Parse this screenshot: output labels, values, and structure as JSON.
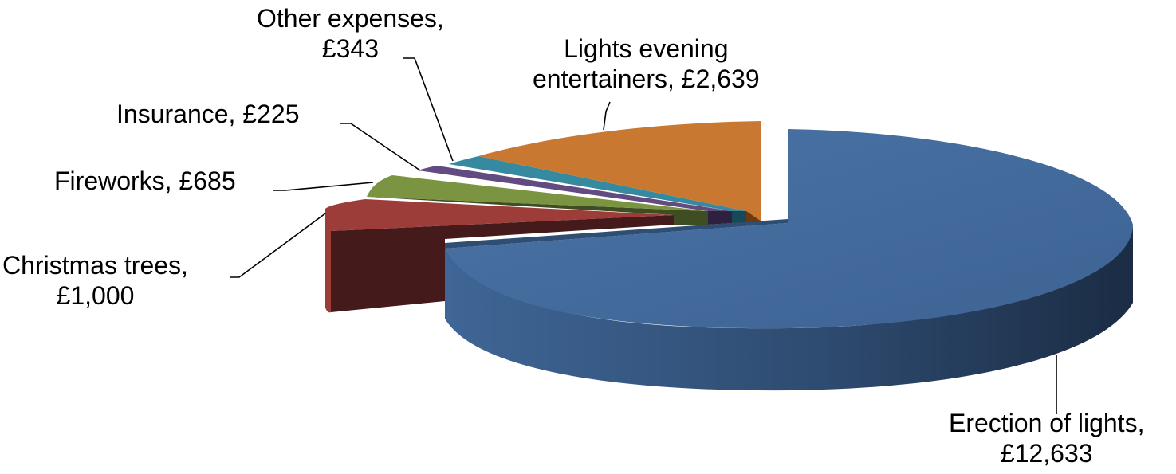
{
  "chart_data": {
    "type": "pie",
    "title": "",
    "slices": [
      {
        "name": "Erection of lights",
        "value_label": "£12,633",
        "value": 12633,
        "color": "#41699A"
      },
      {
        "name": "Christmas trees",
        "value_label": "£1,000",
        "value": 1000,
        "color": "#9C3D3A"
      },
      {
        "name": "Fireworks",
        "value_label": "£685",
        "value": 685,
        "color": "#7B9442"
      },
      {
        "name": "Insurance",
        "value_label": "£225",
        "value": 225,
        "color": "#624B80"
      },
      {
        "name": "Other expenses",
        "value_label": "£343",
        "value": 343,
        "color": "#358A9F"
      },
      {
        "name": "Lights evening entertainers",
        "value_label": "£2,639",
        "value": 2639,
        "color": "#C97832"
      }
    ]
  },
  "labels": {
    "erection": {
      "line1": "Erection of lights,",
      "line2": "£12,633"
    },
    "trees": {
      "line1": "Christmas trees,",
      "line2": "£1,000"
    },
    "fireworks": {
      "line1": "Fireworks,  £685"
    },
    "insurance": {
      "line1": "Insurance,  £225"
    },
    "other": {
      "line1": "Other expenses,",
      "line2": "£343"
    },
    "entertainers": {
      "line1": "Lights evening",
      "line2": "entertainers,  £2,639"
    }
  }
}
